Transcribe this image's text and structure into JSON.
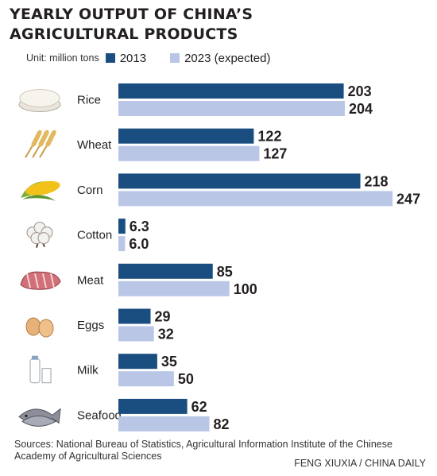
{
  "title_lines": [
    "YEARLY OUTPUT OF CHINA’S",
    "AGRICULTURAL PRODUCTS"
  ],
  "unit": "Unit: million tons",
  "colors": {
    "series_2013": "#1b4e80",
    "series_2023": "#b9c6e6",
    "text": "#231f20"
  },
  "chart_data": {
    "type": "bar",
    "orientation": "horizontal",
    "title": "YEARLY OUTPUT OF CHINA’S AGRICULTURAL PRODUCTS",
    "unit": "million tons",
    "categories": [
      "Rice",
      "Wheat",
      "Corn",
      "Cotton",
      "Meat",
      "Eggs",
      "Milk",
      "Seafood"
    ],
    "icons": [
      "rice-bowl-icon",
      "wheat-icon",
      "corn-icon",
      "cotton-icon",
      "meat-icon",
      "eggs-icon",
      "milk-icon",
      "seafood-icon"
    ],
    "series": [
      {
        "name": "2013",
        "values": [
          203,
          122,
          218,
          6.3,
          85,
          29,
          35,
          62
        ],
        "labels": [
          "203",
          "122",
          "218",
          "6.3",
          "85",
          "29",
          "35",
          "62"
        ]
      },
      {
        "name": "2023 (expected)",
        "values": [
          204,
          127,
          247,
          6.0,
          100,
          32,
          50,
          82
        ],
        "labels": [
          "204",
          "127",
          "247",
          "6.0",
          "100",
          "32",
          "50",
          "82"
        ]
      }
    ],
    "xlim": [
      0,
      247
    ],
    "grid": false,
    "legend": "top-left"
  },
  "footer": {
    "sources": "Sources: National Bureau of Statistics, Agricultural Information Institute of the Chinese Academy of Agricultural Sciences",
    "credit": "FENG XIUXIA / CHINA DAILY"
  }
}
